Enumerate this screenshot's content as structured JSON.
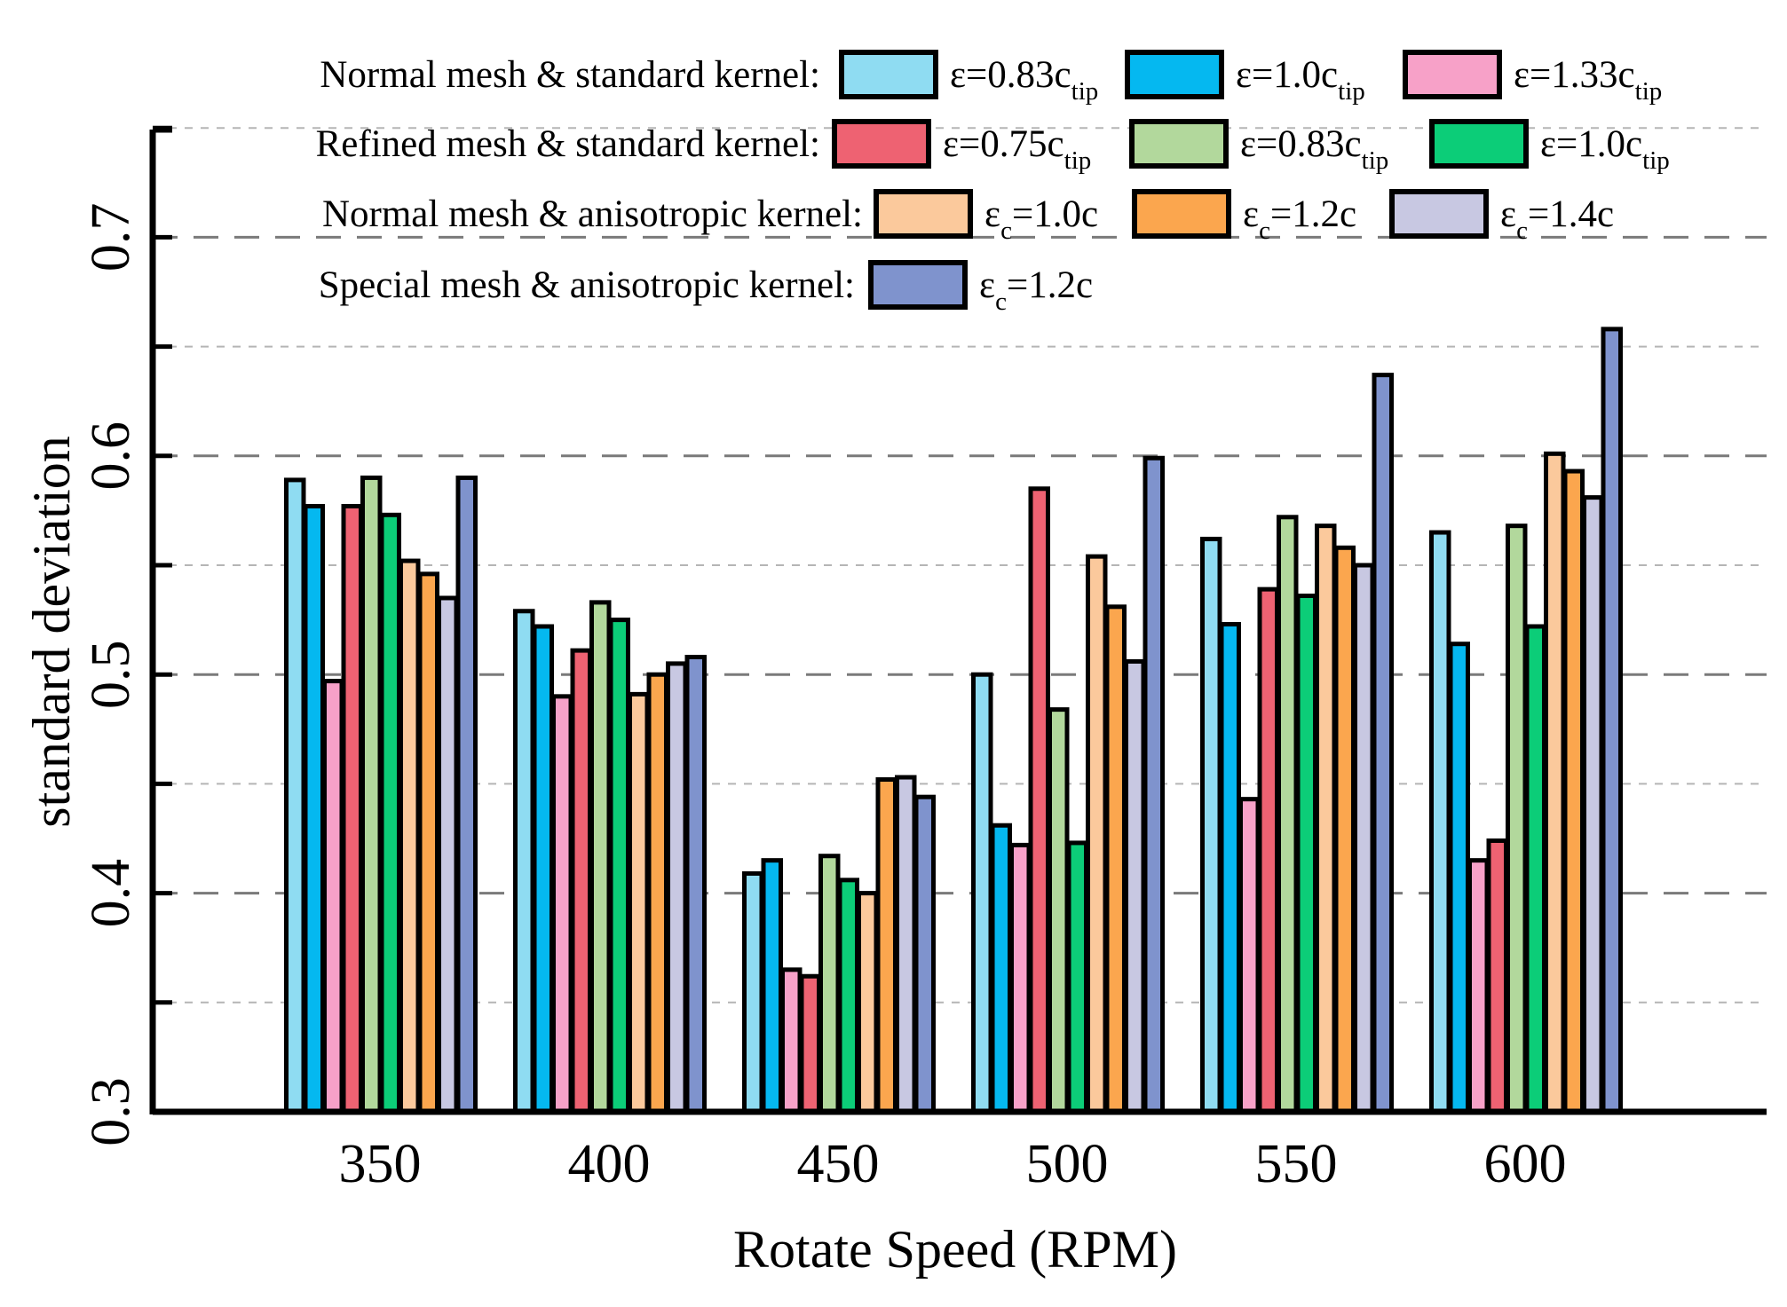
{
  "chart_data": {
    "type": "bar",
    "title": "",
    "xlabel": "Rotate Speed (RPM)",
    "ylabel": "standard deviation",
    "ylim": [
      0.3,
      0.75
    ],
    "yticks": [
      "0.3",
      "0.4",
      "0.5",
      "0.6",
      "0.7"
    ],
    "grid": true,
    "legend_position": "top",
    "categories": [
      "350",
      "400",
      "450",
      "500",
      "550",
      "600"
    ],
    "legend_groups": [
      {
        "label": "Normal mesh & standard kernel:",
        "series_indices": [
          0,
          1,
          2
        ]
      },
      {
        "label": "Refined mesh & standard kernel:",
        "series_indices": [
          3,
          4,
          5
        ]
      },
      {
        "label": "Normal mesh & anisotropic kernel:",
        "series_indices": [
          6,
          7,
          8
        ]
      },
      {
        "label": "Special mesh & anisotropic kernel:",
        "series_indices": [
          9
        ]
      }
    ],
    "series": [
      {
        "name": "ε=0.83c_tip",
        "legend_main": "ε=0.83c",
        "legend_sub": "tip",
        "sub_type": "subscript",
        "color": "#8fdcf2",
        "values": [
          0.589,
          0.529,
          0.409,
          0.5,
          0.562,
          0.565
        ]
      },
      {
        "name": "ε=1.0c_tip",
        "legend_main": "ε=1.0c",
        "legend_sub": "tip",
        "sub_type": "subscript",
        "color": "#05b8f0",
        "values": [
          0.577,
          0.522,
          0.415,
          0.431,
          0.523,
          0.514
        ]
      },
      {
        "name": "ε=1.33c_tip",
        "legend_main": "ε=1.33c",
        "legend_sub": "tip",
        "sub_type": "subscript",
        "color": "#f7a1c8",
        "values": [
          0.497,
          0.49,
          0.365,
          0.422,
          0.443,
          0.415
        ]
      },
      {
        "name": "ε=0.75c_tip",
        "legend_main": "ε=0.75c",
        "legend_sub": "tip",
        "sub_type": "subscript",
        "color": "#ee6272",
        "values": [
          0.577,
          0.511,
          0.362,
          0.585,
          0.539,
          0.424
        ]
      },
      {
        "name": "ε=0.83c_tip",
        "legend_main": "ε=0.83c",
        "legend_sub": "tip",
        "sub_type": "subscript",
        "color": "#b2d89c",
        "values": [
          0.59,
          0.533,
          0.417,
          0.484,
          0.572,
          0.568
        ]
      },
      {
        "name": "ε=1.0c_tip",
        "legend_main": "ε=1.0c",
        "legend_sub": "tip",
        "sub_type": "subscript",
        "color": "#0ccd78",
        "values": [
          0.573,
          0.525,
          0.406,
          0.423,
          0.536,
          0.522
        ]
      },
      {
        "name": "ε_c=1.0c",
        "legend_main": "ε",
        "legend_sub": "c",
        "legend_tail": "=1.0c",
        "sub_type": "symbol",
        "color": "#fbc99c",
        "values": [
          0.552,
          0.491,
          0.4,
          0.554,
          0.568,
          0.601
        ]
      },
      {
        "name": "ε_c=1.2c",
        "legend_main": "ε",
        "legend_sub": "c",
        "legend_tail": "=1.2c",
        "sub_type": "symbol",
        "color": "#fba64e",
        "values": [
          0.546,
          0.5,
          0.452,
          0.531,
          0.558,
          0.593
        ]
      },
      {
        "name": "ε_c=1.4c",
        "legend_main": "ε",
        "legend_sub": "c",
        "legend_tail": "=1.4c",
        "sub_type": "symbol",
        "color": "#c8c8e2",
        "values": [
          0.535,
          0.505,
          0.453,
          0.506,
          0.55,
          0.581
        ]
      },
      {
        "name": "ε_c=1.2c",
        "legend_main": "ε",
        "legend_sub": "c",
        "legend_tail": "=1.2c",
        "sub_type": "symbol",
        "color": "#7f93cd",
        "values": [
          0.59,
          0.508,
          0.444,
          0.599,
          0.637,
          0.658
        ]
      }
    ]
  }
}
